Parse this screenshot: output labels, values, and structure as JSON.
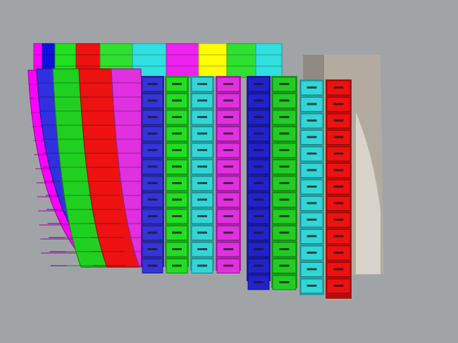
{
  "viewport": {
    "background": "#a1a4a6",
    "back_row_colors": [
      "#ff00ff",
      "#1010e0",
      "#20e020",
      "#ee1111",
      "#30e030",
      "#30e0e0",
      "#ee22ee",
      "#ffff00",
      "#30e030",
      "#30e0e0"
    ],
    "left_band_colors": [
      "#ff00ff",
      "#3030e0",
      "#20d020",
      "#ee1111",
      "#e030e0"
    ],
    "front_column_colors": [
      "#3434d8",
      "#22dd22",
      "#33d6d6",
      "#e030e0",
      "#2222cc",
      "#22cc22",
      "#33d6d6",
      "#ee1111"
    ],
    "wall_color": "#b3ab9f",
    "wall_shadow_color": "#8f8a82"
  }
}
